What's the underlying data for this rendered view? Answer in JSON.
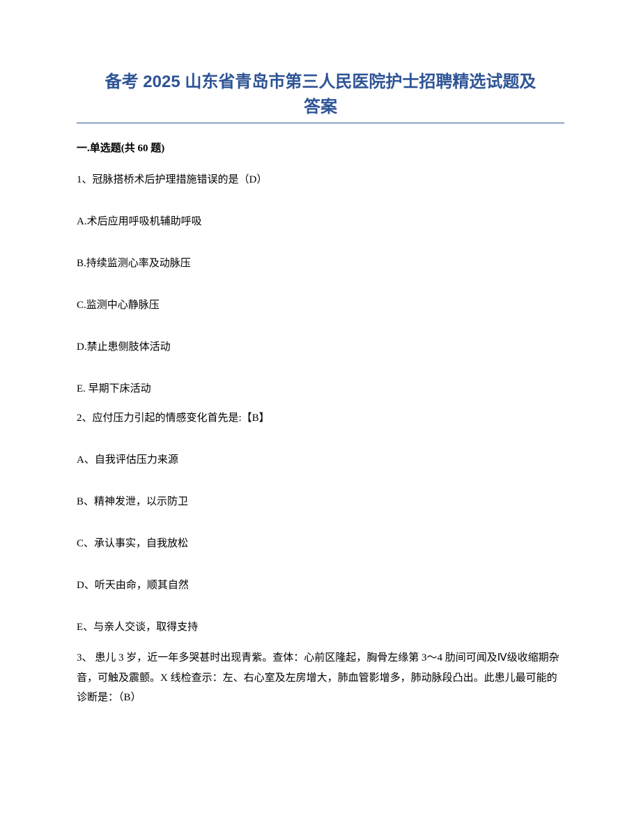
{
  "title_line1": "备考 2025 山东省青岛市第三人民医院护士招聘精选试题及",
  "title_line2": "答案",
  "section_header": "一.单选题(共 60 题)",
  "q1": {
    "stem": "1、冠脉搭桥术后护理措施错误的是（D）",
    "options": {
      "a": "A.术后应用呼吸机辅助呼吸",
      "b": "B.持续监测心率及动脉压",
      "c": "C.监测中心静脉压",
      "d": "D.禁止患侧肢体活动",
      "e": "E. 早期下床活动"
    }
  },
  "q2": {
    "stem": "2、应付压力引起的情感变化首先是:【B】",
    "options": {
      "a": "A、自我评估压力来源",
      "b": "B、精神发泄，以示防卫",
      "c": "C、承认事实，自我放松",
      "d": "D、听天由命，顺其自然",
      "e": "E、与亲人交谈，取得支持"
    }
  },
  "q3": {
    "stem": "3、 患儿 3 岁，近一年多哭甚时出现青紫。查体：心前区隆起，胸骨左缘第 3～4 肋间可闻及Ⅳ级收缩期杂音，可触及震颤。X 线检查示：左、右心室及左房增大，肺血管影增多，肺动脉段凸出。此患儿最可能的诊断是：（B）"
  },
  "colors": {
    "title_color": "#2e5496",
    "text_color": "#000000",
    "divider_color": "#2e5496",
    "background": "#ffffff"
  },
  "typography": {
    "title_fontsize": 24,
    "body_fontsize": 15,
    "title_font": "SimHei",
    "body_font": "SimSun"
  }
}
